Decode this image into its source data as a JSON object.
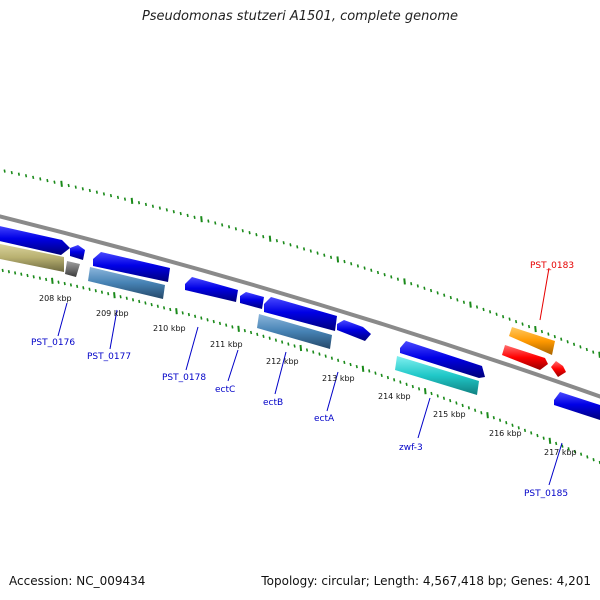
{
  "title": "Pseudomonas stutzeri A1501, complete genome",
  "footer": {
    "accession": "Accession: NC_009434",
    "summary": "Topology: circular; Length: 4,567,418 bp; Genes: 4,201"
  },
  "colors": {
    "backbone": "#8a8a8a",
    "tick": "#1a8a1a",
    "label_blue": "#0000c8",
    "label_red": "#e60000",
    "gene_blue": "#0000e6",
    "gene_steel": "#4682b4",
    "gene_khaki": "#b8b070",
    "gene_gray": "#707070",
    "gene_cyan": "#20c8c8",
    "gene_orange": "#ff9900",
    "gene_red": "#ff0000"
  },
  "scale_labels": [
    "208 kbp",
    "209 kbp",
    "210 kbp",
    "211 kbp",
    "212 kbp",
    "213 kbp",
    "214 kbp",
    "215 kbp",
    "216 kbp",
    "217 kbp"
  ],
  "gene_labels": [
    {
      "text": "PST_0176",
      "color": "blue"
    },
    {
      "text": "PST_0177",
      "color": "blue"
    },
    {
      "text": "PST_0178",
      "color": "blue"
    },
    {
      "text": "ectC",
      "color": "blue"
    },
    {
      "text": "ectB",
      "color": "blue"
    },
    {
      "text": "ectA",
      "color": "blue"
    },
    {
      "text": "zwf-3",
      "color": "blue"
    },
    {
      "text": "PST_0183",
      "color": "red"
    },
    {
      "text": "PST_0185",
      "color": "blue"
    }
  ]
}
